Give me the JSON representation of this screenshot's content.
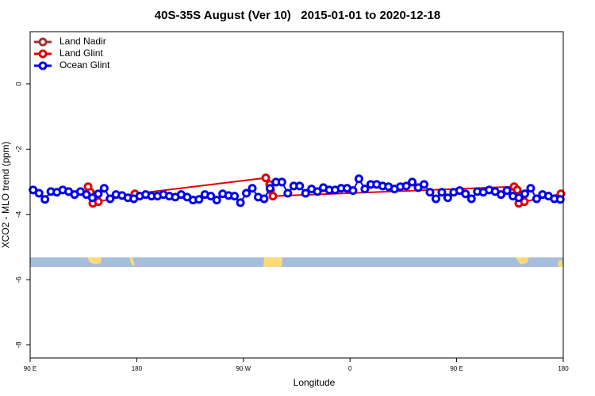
{
  "chart_data": {
    "type": "line",
    "title": "40S-35S August (Ver 10)   2015-01-01 to 2020-12-18",
    "x_label": "Longitude",
    "y_label": "XCO2 - MLO trend (ppm)",
    "xlim": [
      90,
      540
    ],
    "xticks": [
      {
        "value": 90,
        "label": "90 E"
      },
      180,
      {
        "value": 270,
        "label": "90 W"
      },
      {
        "value": 360,
        "label": "0"
      },
      {
        "value": 450,
        "label": "90 E"
      },
      {
        "value": 540,
        "label": "180"
      }
    ],
    "ylim": [
      -8.4,
      1.6
    ],
    "yticks": [
      0,
      -2,
      -4,
      -6,
      -8
    ],
    "legend": "top-left",
    "series": [
      {
        "name": "Land Nadir",
        "color": "#a0302d",
        "x": [],
        "values": []
      },
      {
        "name": "Land Glint",
        "color": "#e00000",
        "x": [
          138.9,
          140.9,
          142.9,
          147.6,
          178.4,
          288.9,
          292.2,
          292.9,
          294.9,
          498.5,
          501.2,
          502.5,
          507.2,
          538
        ],
        "values": [
          -3.15,
          -3.32,
          -3.66,
          -3.61,
          -3.37,
          -2.88,
          -3.08,
          -3.25,
          -3.44,
          -3.15,
          -3.25,
          -3.66,
          -3.61,
          -3.37
        ]
      },
      {
        "name": "Ocean Glint",
        "color": "#0000ee",
        "x": [
          92.5,
          97.5,
          102.5,
          107.5,
          112.5,
          117.5,
          122.5,
          127.5,
          132.5,
          137.5,
          142.5,
          147.5,
          152.5,
          157.5,
          162.5,
          167.5,
          172.5,
          177.5,
          182.5,
          187.5,
          192.5,
          197.5,
          202.5,
          207.5,
          212.5,
          217.5,
          222.5,
          227.5,
          232.5,
          237.5,
          242.5,
          247.5,
          252.5,
          257.5,
          262.5,
          267.5,
          272.5,
          277.5,
          282.5,
          287.5,
          292.5,
          297.5,
          302.5,
          307.5,
          312.5,
          317.5,
          322.5,
          327.5,
          332.5,
          337.5,
          342.5,
          347.5,
          352.5,
          357.5,
          362.5,
          367.5,
          372.5,
          377.5,
          382.5,
          387.5,
          392.5,
          397.5,
          402.5,
          407.5,
          412.5,
          417.5,
          422.5,
          427.5,
          432.5,
          437.5,
          442.5,
          447.5,
          452.5,
          457.5,
          462.5,
          467.5,
          472.5,
          477.5,
          482.5,
          487.5,
          492.5,
          497.5,
          502.5,
          507.5,
          512.5,
          517.5,
          522.5,
          527.5,
          532.5,
          537.5
        ],
        "values": [
          -3.25,
          -3.35,
          -3.54,
          -3.3,
          -3.32,
          -3.25,
          -3.3,
          -3.39,
          -3.3,
          -3.39,
          -3.49,
          -3.37,
          -3.2,
          -3.52,
          -3.39,
          -3.42,
          -3.49,
          -3.52,
          -3.44,
          -3.39,
          -3.44,
          -3.44,
          -3.39,
          -3.44,
          -3.47,
          -3.39,
          -3.47,
          -3.56,
          -3.54,
          -3.39,
          -3.44,
          -3.56,
          -3.37,
          -3.42,
          -3.44,
          -3.64,
          -3.35,
          -3.2,
          -3.47,
          -3.52,
          -3.2,
          -3.01,
          -3.01,
          -3.35,
          -3.13,
          -3.13,
          -3.35,
          -3.22,
          -3.3,
          -3.18,
          -3.25,
          -3.25,
          -3.2,
          -3.2,
          -3.27,
          -2.91,
          -3.22,
          -3.08,
          -3.08,
          -3.13,
          -3.15,
          -3.22,
          -3.15,
          -3.13,
          -3.01,
          -3.18,
          -3.08,
          -3.32,
          -3.52,
          -3.32,
          -3.49,
          -3.32,
          -3.27,
          -3.37,
          -3.52,
          -3.3,
          -3.32,
          -3.25,
          -3.3,
          -3.39,
          -3.27,
          -3.44,
          -3.49,
          -3.37,
          -3.2,
          -3.52,
          -3.39,
          -3.44,
          -3.52,
          -3.54
        ]
      }
    ]
  }
}
